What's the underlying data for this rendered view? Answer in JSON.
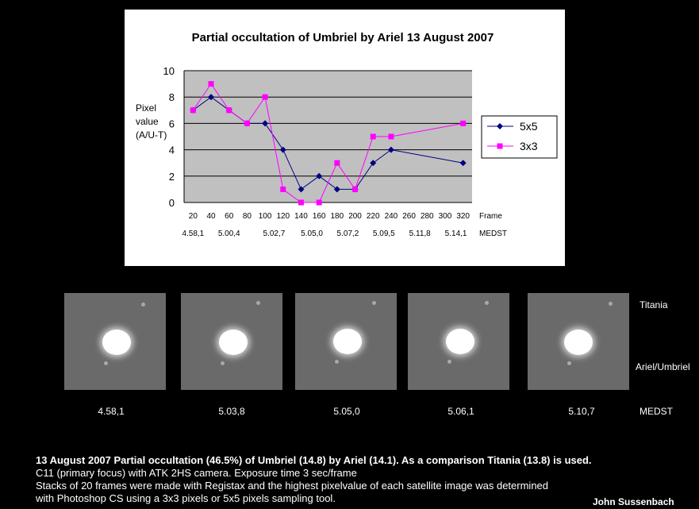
{
  "chart_data": {
    "type": "line",
    "title": "Partial occultation of Umbriel by Ariel 13 August 2007",
    "ylabel": [
      "Pixel",
      "value",
      "(A/U-T)"
    ],
    "xlabel": "Frame",
    "x_ticks": [
      20,
      40,
      60,
      80,
      100,
      120,
      140,
      160,
      180,
      200,
      220,
      240,
      260,
      280,
      300,
      320
    ],
    "xlim": [
      10,
      330
    ],
    "ylim": [
      0,
      10
    ],
    "y_ticks": [
      0,
      2,
      4,
      6,
      8,
      10
    ],
    "grid": true,
    "legend_position": "right",
    "time_axis_label": "MEDST",
    "time_ticks": [
      {
        "x": 20,
        "label": "4.58,1"
      },
      {
        "x": 60,
        "label": "5.00,4"
      },
      {
        "x": 110,
        "label": "5.02,7"
      },
      {
        "x": 152,
        "label": "5.05,0"
      },
      {
        "x": 192,
        "label": "5.07,2"
      },
      {
        "x": 232,
        "label": "5.09,5"
      },
      {
        "x": 272,
        "label": "5.11,8"
      },
      {
        "x": 312,
        "label": "5.14,1"
      }
    ],
    "series": [
      {
        "name": "5x5",
        "color": "#000080",
        "marker": "diamond",
        "x": [
          20,
          40,
          60,
          80,
          100,
          120,
          140,
          160,
          180,
          200,
          220,
          240,
          320
        ],
        "y": [
          7,
          8,
          7,
          6,
          6,
          4,
          1,
          2,
          1,
          1,
          3,
          4,
          3
        ]
      },
      {
        "name": "3x3",
        "color": "#ff00ff",
        "marker": "square",
        "x": [
          20,
          40,
          60,
          80,
          100,
          120,
          140,
          160,
          180,
          200,
          220,
          240,
          320
        ],
        "y": [
          7,
          9,
          7,
          6,
          8,
          1,
          0,
          0,
          3,
          1,
          5,
          5,
          6
        ]
      }
    ]
  },
  "images": {
    "captions": [
      "4.58,1",
      "5.03,8",
      "5.05,0",
      "5.06,1",
      "5.10,7"
    ],
    "unit_label": "MEDST",
    "label_top": "Titania",
    "label_bottom": "Ariel/Umbriel"
  },
  "notes": {
    "line1": "13 August 2007 Partial occultation (46.5%) of Umbriel (14.8) by Ariel (14.1). As a comparison Titania (13.8) is used.",
    "line2": "C11 (primary focus) with ATK 2HS camera. Exposure time 3 sec/frame",
    "line3": "Stacks of 20 frames were made with Registax and the highest pixelvalue of each satellite image was determined",
    "line4": "with Photoshop CS using a 3x3 pixels or 5x5 pixels sampling tool.",
    "author": "John Sussenbach"
  }
}
